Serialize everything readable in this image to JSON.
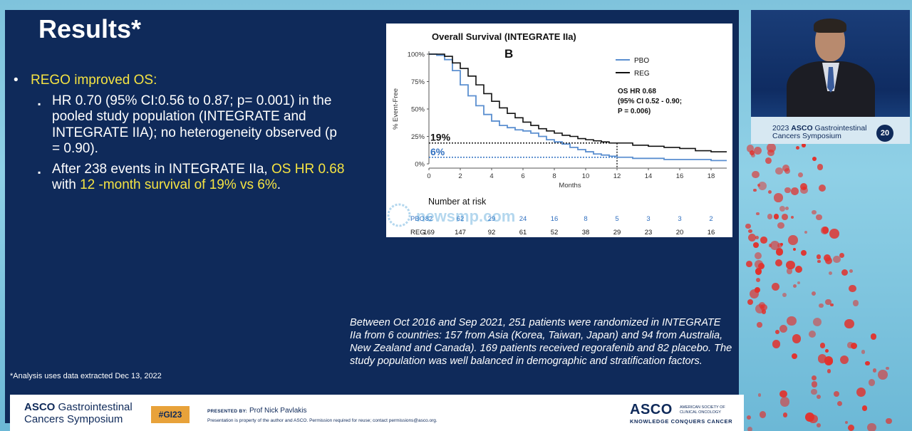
{
  "slide": {
    "title": "Results*",
    "bullet_main": {
      "marker": "•",
      "text": "REGO improved OS:"
    },
    "sub_bullets": [
      {
        "marker": "▪",
        "parts": [
          {
            "text": "HR 0.70 (95% CI:0.56 to 0.87; p= 0.001) in the pooled study population (INTEGRATE and INTEGRATE IIA); no heterogeneity observed (p = 0.90).",
            "highlight": false
          }
        ]
      },
      {
        "marker": "▪",
        "parts": [
          {
            "text": "After 238 events in INTEGRATE IIa, ",
            "highlight": false
          },
          {
            "text": "OS HR 0.68",
            "highlight": true
          },
          {
            "text": " with ",
            "highlight": false
          },
          {
            "text": "12 -month survival of 19% vs 6%",
            "highlight": true
          },
          {
            "text": ".",
            "highlight": false
          }
        ]
      }
    ],
    "footnote": "*Analysis uses data extracted Dec 13, 2022",
    "paragraph": "Between Oct 2016 and Sep 2021, 251 patients were randomized in INTEGRATE IIa from 6 countries: 157 from Asia (Korea, Taiwan, Japan) and 94 from Australia, New Zealand and Canada). 169 patients received regorafenib and 82 placebo. The study population was well balanced in demographic and stratification factors."
  },
  "chart_data": {
    "type": "line",
    "title": "Overall Survival (INTEGRATE IIa)",
    "panel_label": "B",
    "xlabel": "Months",
    "ylabel": "% Event-Free",
    "xlim": [
      0,
      19
    ],
    "ylim": [
      0,
      100
    ],
    "x_ticks": [
      0,
      2,
      4,
      6,
      8,
      10,
      12,
      14,
      16,
      18
    ],
    "y_ticks": [
      0,
      25,
      50,
      75,
      100
    ],
    "y_tick_labels": [
      "0%",
      "25%",
      "50%",
      "75%",
      "100%"
    ],
    "legend_position": "top-right",
    "series": [
      {
        "name": "PBO",
        "color": "#5b8fd0",
        "x": [
          0,
          0.5,
          1,
          1.5,
          2,
          2.5,
          3,
          3.5,
          4,
          4.5,
          5,
          5.5,
          6,
          6.5,
          7,
          7.5,
          8,
          8.5,
          9,
          9.5,
          10,
          10.5,
          11,
          11.5,
          12,
          13,
          14,
          15,
          16,
          17,
          18,
          19
        ],
        "y": [
          100,
          99,
          95,
          85,
          72,
          62,
          53,
          45,
          39,
          35,
          33,
          31,
          30,
          28,
          25,
          22,
          20,
          18,
          15,
          13,
          11,
          9,
          8,
          7,
          6,
          5,
          5,
          4,
          4,
          4,
          3,
          3
        ]
      },
      {
        "name": "REG",
        "color": "#111111",
        "x": [
          0,
          0.5,
          1,
          1.5,
          2,
          2.5,
          3,
          3.5,
          4,
          4.5,
          5,
          5.5,
          6,
          6.5,
          7,
          7.5,
          8,
          8.5,
          9,
          9.5,
          10,
          10.5,
          11,
          11.5,
          12,
          13,
          14,
          15,
          16,
          17,
          18,
          19
        ],
        "y": [
          100,
          100,
          98,
          92,
          87,
          80,
          72,
          64,
          57,
          51,
          46,
          42,
          38,
          35,
          32,
          30,
          28,
          26,
          25,
          23,
          22,
          21,
          20,
          19,
          19,
          17,
          16,
          15,
          14,
          12,
          11,
          11
        ]
      }
    ],
    "annotation_stats": [
      "OS HR 0.68",
      "(95% CI 0.52 - 0.90;",
      "P = 0.006)"
    ],
    "reference_lines": [
      {
        "label": "19%",
        "y": 19,
        "x_end": 12,
        "color": "#111111"
      },
      {
        "label": "6%",
        "y": 6,
        "x_end": 12,
        "color": "#2f6fc0"
      }
    ],
    "risk_table": {
      "title": "Number at risk",
      "rows": [
        {
          "name": "PBO",
          "color": "#2f6fc0",
          "values": [
            "82",
            "62",
            "29",
            "24",
            "16",
            "8",
            "5",
            "3",
            "3",
            "2"
          ]
        },
        {
          "name": "REG",
          "color": "#111111",
          "values": [
            "169",
            "147",
            "92",
            "61",
            "52",
            "38",
            "29",
            "23",
            "20",
            "16"
          ]
        }
      ]
    }
  },
  "watermark": "newsmp.com",
  "bottom_bar": {
    "asco_line1_bold": "ASCO",
    "asco_line1": "Gastrointestinal",
    "asco_line2": "Cancers Symposium",
    "hashtag": "#GI23",
    "presented_by_label": "PRESENTED BY:",
    "presenter": "Prof Nick Pavlakis",
    "permission": "Presentation is property of the author and ASCO. Permission required for reuse; contact permissions@asco.org.",
    "asco_logo": "ASCO",
    "asco_society": "AMERICAN SOCIETY OF CLINICAL ONCOLOGY",
    "asco_tagline": "KNOWLEDGE CONQUERS CANCER"
  },
  "video": {
    "podium_year": "2023",
    "podium_asco": "ASCO",
    "podium_line1": "Gastrointestinal",
    "podium_line2": "Cancers Symposium",
    "badge": "20"
  }
}
